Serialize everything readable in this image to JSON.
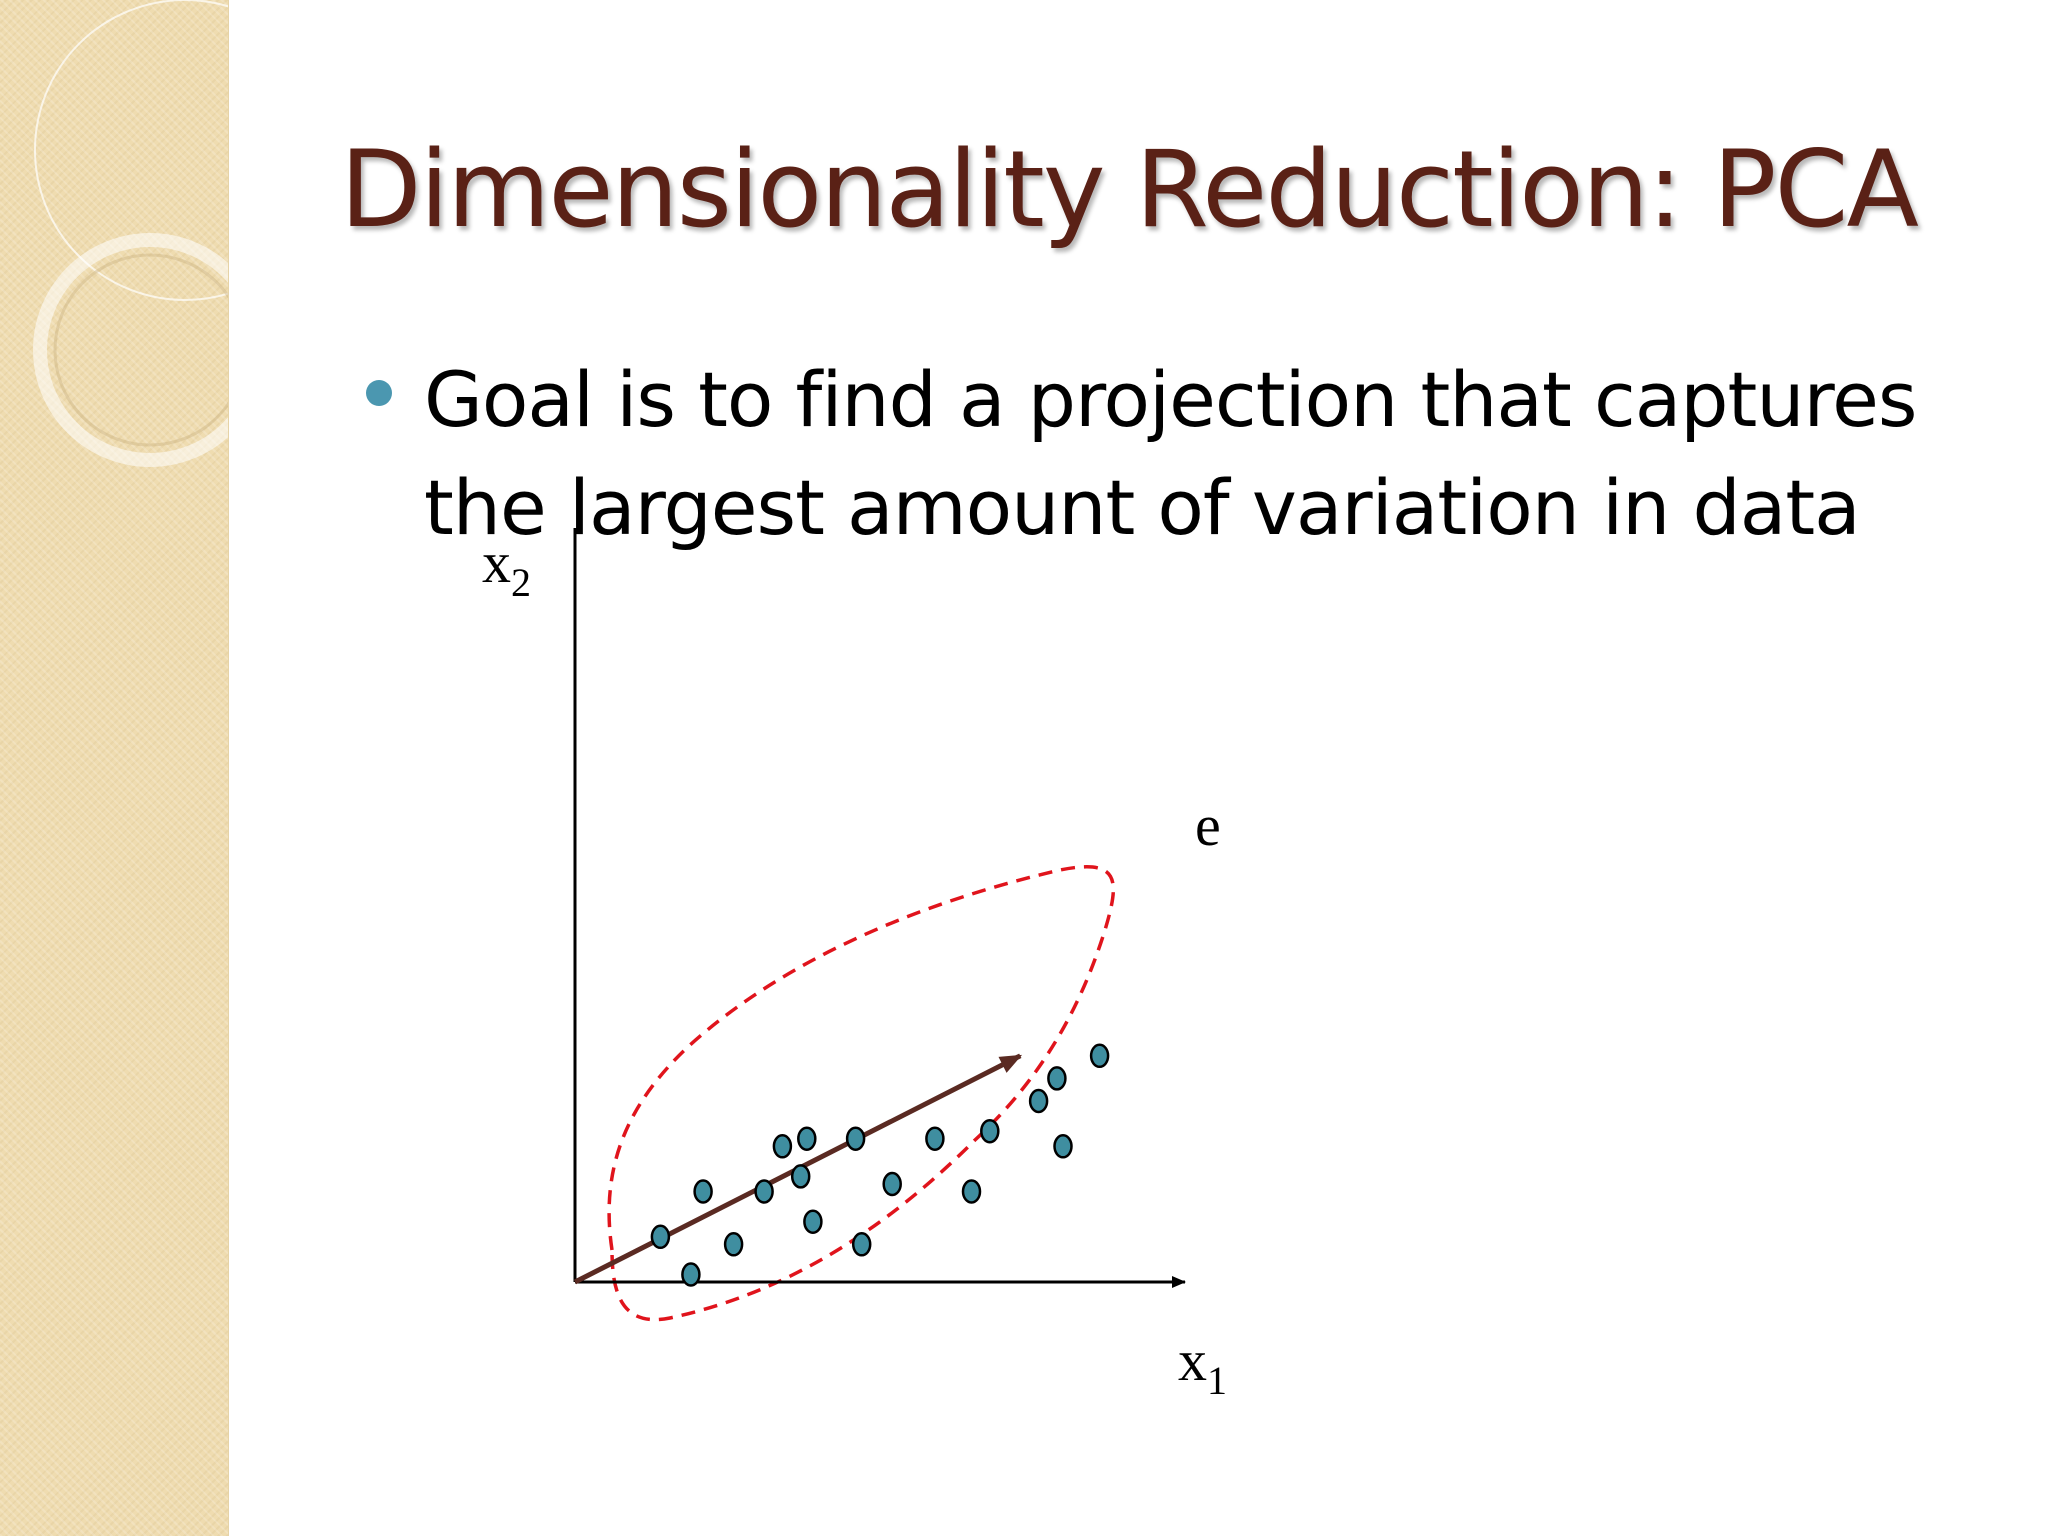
{
  "slide": {
    "title": "Dimensionality Reduction: PCA",
    "bullet": "Goal is to find a projection that captures the largest  amount of variation in data",
    "colors": {
      "title": "#5a2116",
      "bullet_dot": "#4b97b0",
      "side_band": "#efdcb0"
    }
  },
  "chart_data": {
    "type": "scatter",
    "x_axis": {
      "label": "x",
      "subscript": "1"
    },
    "y_axis": {
      "label": "x",
      "subscript": "2"
    },
    "vector_label": "e",
    "colors": {
      "points": "#3f8ea0",
      "vector": "#5a2a22",
      "envelope": "#e0141c"
    },
    "points": [
      {
        "x": 0.86,
        "y": 0.3
      },
      {
        "x": 0.79,
        "y": 0.27
      },
      {
        "x": 0.76,
        "y": 0.24
      },
      {
        "x": 0.68,
        "y": 0.2
      },
      {
        "x": 0.59,
        "y": 0.19
      },
      {
        "x": 0.38,
        "y": 0.19
      },
      {
        "x": 0.46,
        "y": 0.19
      },
      {
        "x": 0.34,
        "y": 0.18
      },
      {
        "x": 0.8,
        "y": 0.18
      },
      {
        "x": 0.37,
        "y": 0.14
      },
      {
        "x": 0.21,
        "y": 0.12
      },
      {
        "x": 0.31,
        "y": 0.12
      },
      {
        "x": 0.52,
        "y": 0.13
      },
      {
        "x": 0.65,
        "y": 0.12
      },
      {
        "x": 0.39,
        "y": 0.08
      },
      {
        "x": 0.14,
        "y": 0.06
      },
      {
        "x": 0.26,
        "y": 0.05
      },
      {
        "x": 0.47,
        "y": 0.05
      },
      {
        "x": 0.19,
        "y": 0.01
      }
    ]
  }
}
